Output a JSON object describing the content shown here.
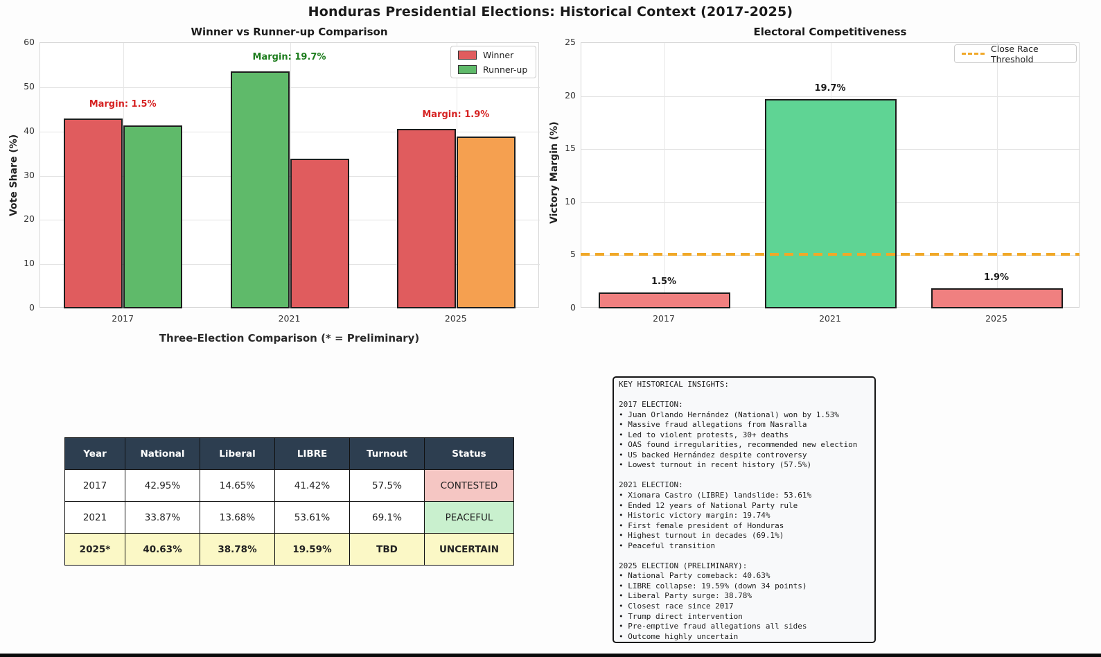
{
  "title": "Honduras Presidential Elections: Historical Context (2017-2025)",
  "chart_data": [
    {
      "type": "bar",
      "title": "Winner vs Runner-up Comparison",
      "xlabel": "Three-Election Comparison (* = Preliminary)",
      "ylabel": "Vote Share (%)",
      "ylim": [
        0,
        60
      ],
      "yticks": [
        0,
        10,
        20,
        30,
        40,
        50,
        60
      ],
      "grid": true,
      "legend_position": "top-right",
      "categories": [
        "2017",
        "2021",
        "2025"
      ],
      "series": [
        {
          "name": "Winner",
          "values": [
            42.95,
            53.61,
            40.63
          ],
          "colors": [
            "#e05c5e",
            "#5fba6a",
            "#e05c5e"
          ]
        },
        {
          "name": "Runner-up",
          "values": [
            41.42,
            33.87,
            38.78
          ],
          "colors": [
            "#5fba6a",
            "#e05c5e",
            "#f5a050"
          ]
        }
      ],
      "legend": [
        {
          "label": "Winner",
          "color": "#e05c5e"
        },
        {
          "label": "Runner-up",
          "color": "#5fba6a"
        }
      ],
      "annotations": [
        {
          "text": "Margin: 1.5%",
          "color": "#d62222"
        },
        {
          "text": "Margin: 19.7%",
          "color": "#1e7d1e"
        },
        {
          "text": "Margin: 1.9%",
          "color": "#d62222"
        }
      ]
    },
    {
      "type": "bar",
      "title": "Electoral Competitiveness",
      "xlabel": "",
      "ylabel": "Victory Margin (%)",
      "ylim": [
        0,
        25
      ],
      "yticks": [
        0,
        5,
        10,
        15,
        20,
        25
      ],
      "grid": true,
      "legend_position": "top-right",
      "categories": [
        "2017",
        "2021",
        "2025"
      ],
      "values": [
        1.53,
        19.74,
        1.9
      ],
      "bar_labels": [
        "1.5%",
        "19.7%",
        "1.9%"
      ],
      "bar_colors": [
        "#f08080",
        "#5fd494",
        "#f08080"
      ],
      "threshold": {
        "value": 5,
        "label": "Close Race Threshold",
        "color": "#f0a828"
      }
    }
  ],
  "table": {
    "header_bg": "#2d3e50",
    "headers": [
      "Year",
      "National",
      "Liberal",
      "LIBRE",
      "Turnout",
      "Status"
    ],
    "rows": [
      {
        "cells": [
          "2017",
          "42.95%",
          "14.65%",
          "41.42%",
          "57.5%",
          "CONTESTED"
        ],
        "row_bg": "#ffffff",
        "status_bg": "#f5c6c3",
        "bold": false
      },
      {
        "cells": [
          "2021",
          "33.87%",
          "13.68%",
          "53.61%",
          "69.1%",
          "PEACEFUL"
        ],
        "row_bg": "#ffffff",
        "status_bg": "#c9f0ce",
        "bold": false
      },
      {
        "cells": [
          "2025*",
          "40.63%",
          "38.78%",
          "19.59%",
          "TBD",
          "UNCERTAIN"
        ],
        "row_bg": "#fbf8c6",
        "status_bg": "#fbf8c6",
        "bold": true
      }
    ]
  },
  "insights": {
    "lines": [
      "KEY HISTORICAL INSIGHTS:",
      "",
      "2017 ELECTION:",
      "• Juan Orlando Hernández (National) won by 1.53%",
      "• Massive fraud allegations from Nasralla",
      "• Led to violent protests, 30+ deaths",
      "• OAS found irregularities, recommended new election",
      "• US backed Hernández despite controversy",
      "• Lowest turnout in recent history (57.5%)",
      "",
      "2021 ELECTION:",
      "• Xiomara Castro (LIBRE) landslide: 53.61%",
      "• Ended 12 years of National Party rule",
      "• Historic victory margin: 19.74%",
      "• First female president of Honduras",
      "• Highest turnout in decades (69.1%)",
      "• Peaceful transition",
      "",
      "2025 ELECTION (PRELIMINARY):",
      "• National Party comeback: 40.63%",
      "• LIBRE collapse: 19.59% (down 34 points)",
      "• Liberal Party surge: 38.78%",
      "• Closest race since 2017",
      "• Trump direct intervention",
      "• Pre-emptive fraud allegations all sides",
      "• Outcome highly uncertain"
    ]
  }
}
